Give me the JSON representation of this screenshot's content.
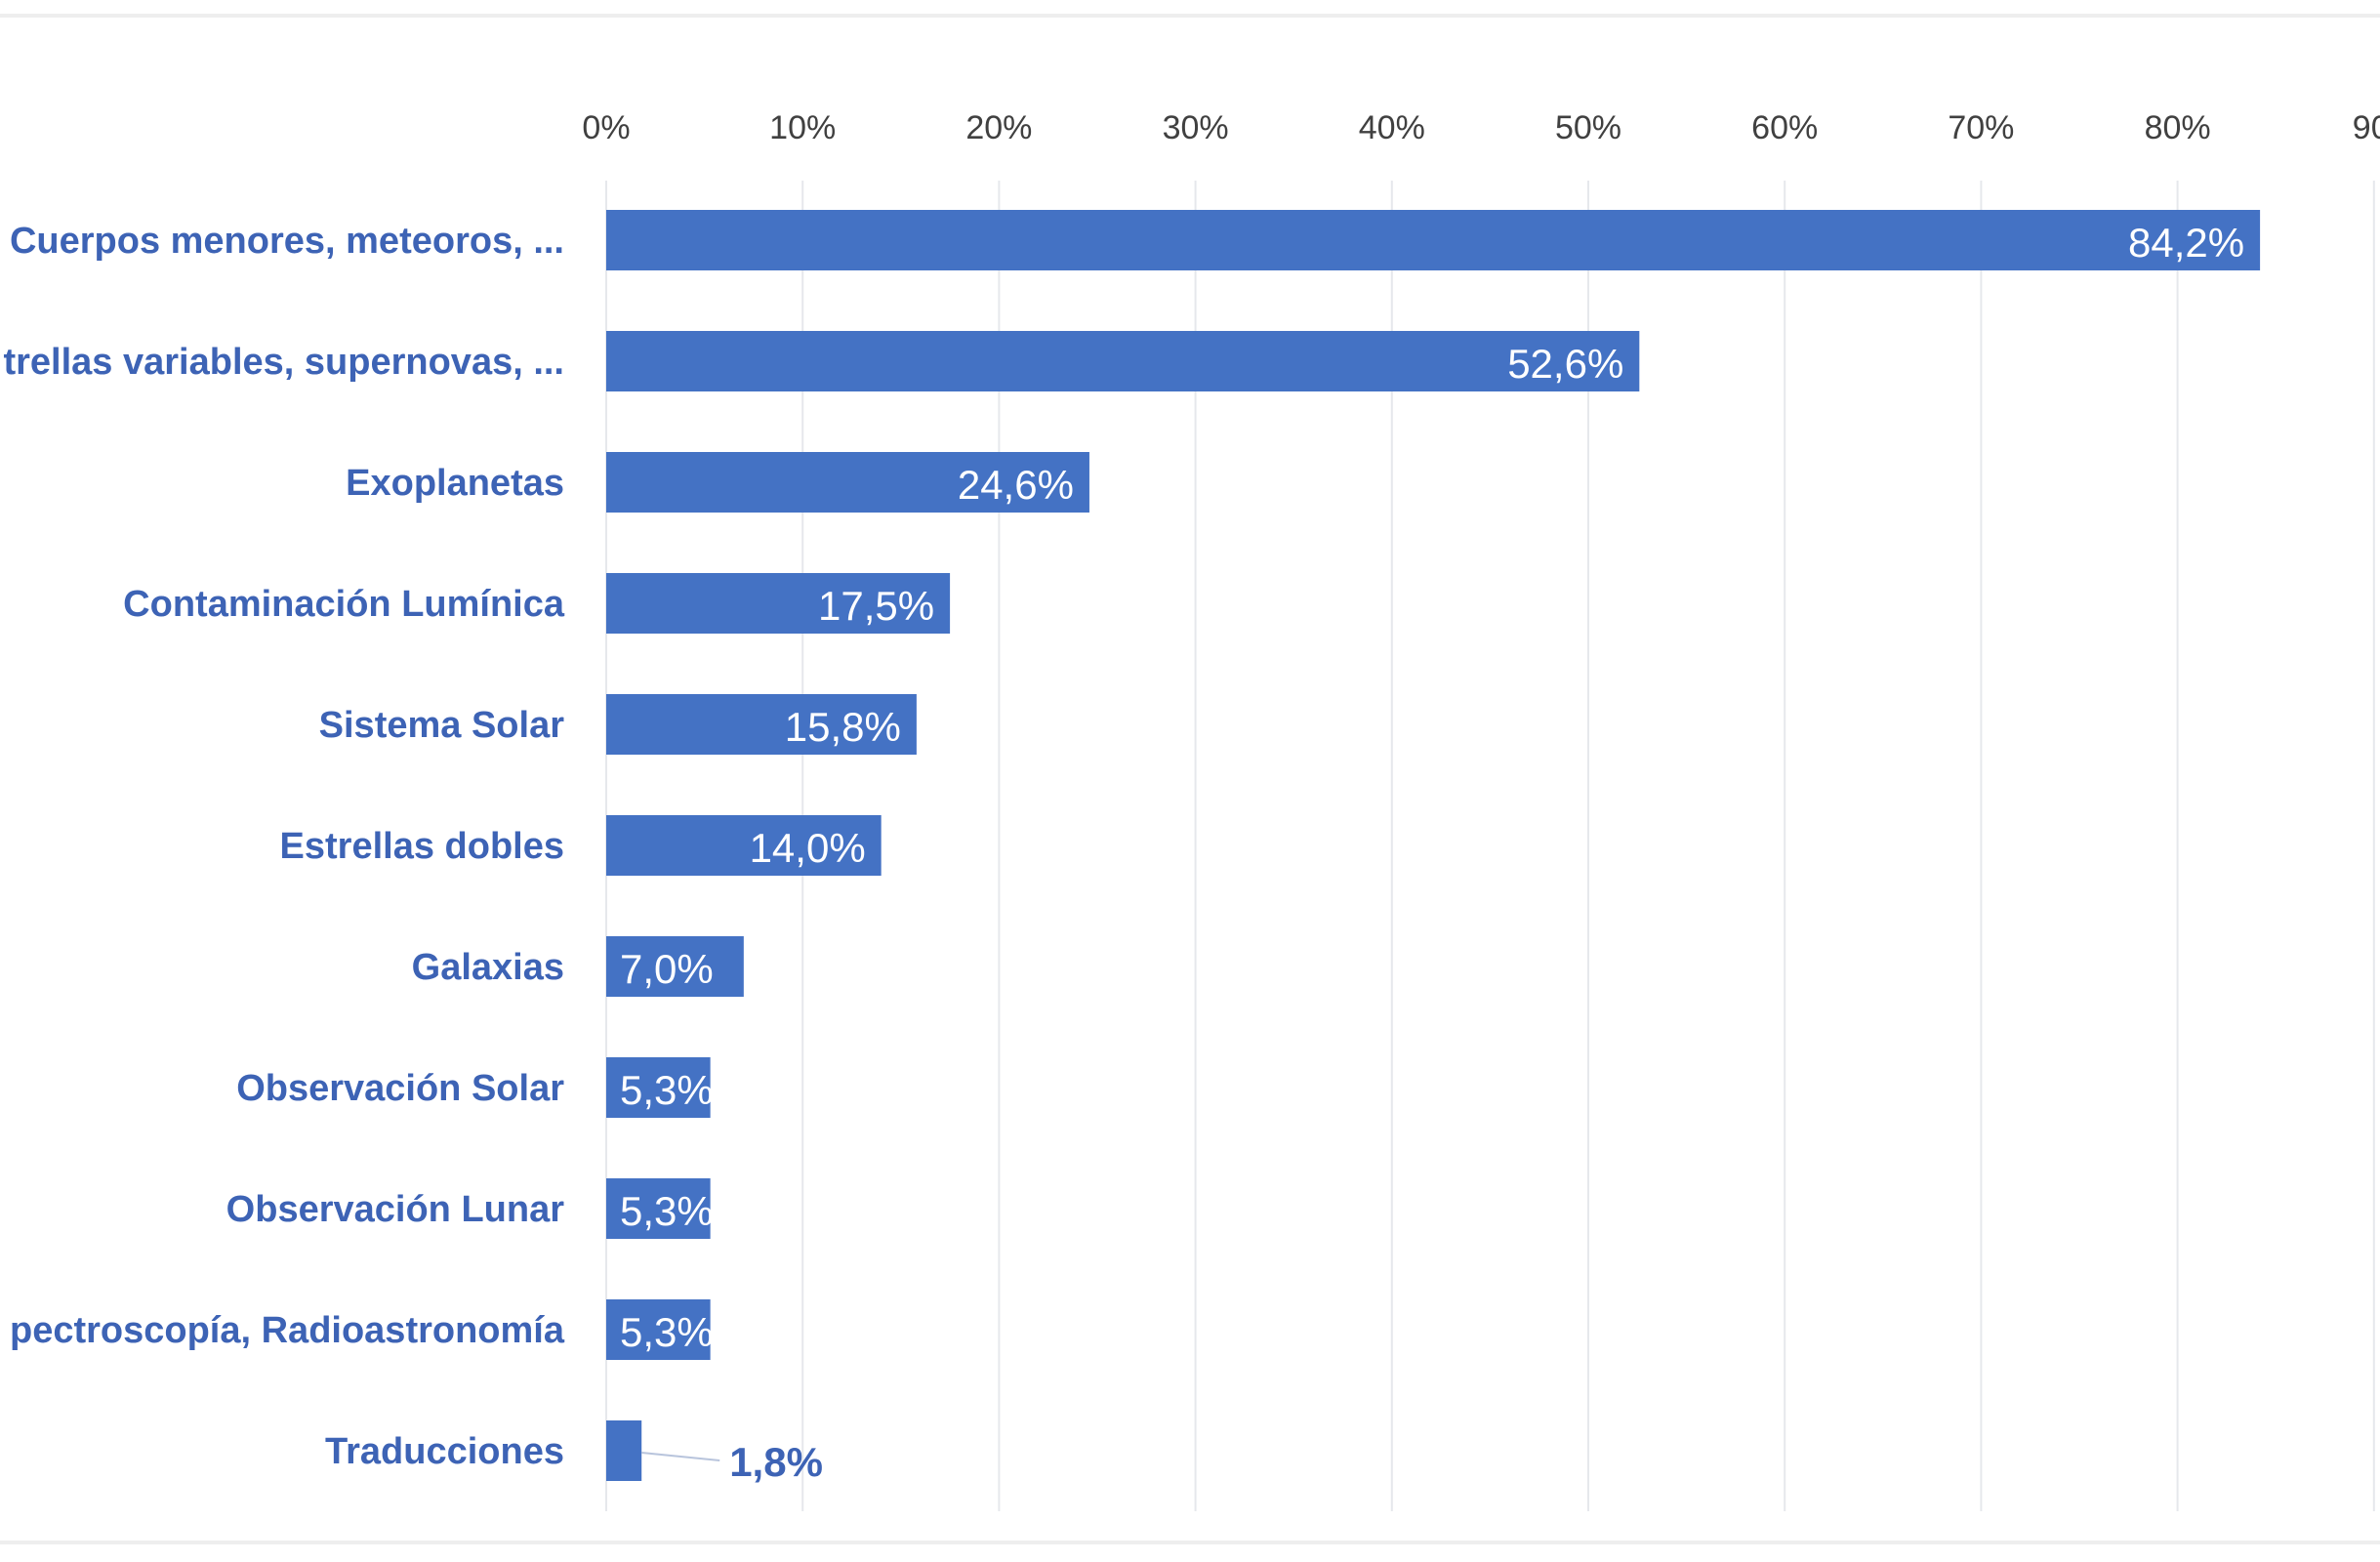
{
  "chart_data": {
    "type": "bar",
    "orientation": "horizontal",
    "title": "",
    "xlabel": "",
    "ylabel": "",
    "xlim": [
      0,
      90
    ],
    "tick_labels": [
      "0%",
      "10%",
      "20%",
      "30%",
      "40%",
      "50%",
      "60%",
      "70%",
      "80%",
      "90"
    ],
    "categories": [
      "Cuerpos menores, meteoros, ...",
      "trellas variables, supernovas, ...",
      "Exoplanetas",
      "Contaminación Lumínica",
      "Sistema Solar",
      "Estrellas dobles",
      "Galaxias",
      "Observación Solar",
      "Observación Lunar",
      "pectroscopía, Radioastronomía",
      "Traducciones"
    ],
    "values": [
      84.2,
      52.6,
      24.6,
      17.5,
      15.8,
      14.0,
      7.0,
      5.3,
      5.3,
      5.3,
      1.8
    ],
    "data_labels": [
      "84,2%",
      "52,6%",
      "24,6%",
      "17,5%",
      "15,8%",
      "14,0%",
      "7,0%",
      "5,3%",
      "5,3%",
      "5,3%",
      "1,8%"
    ],
    "bar_color": "#4472c4",
    "label_color": "#3d63b5",
    "grid": true,
    "legend": "none"
  }
}
